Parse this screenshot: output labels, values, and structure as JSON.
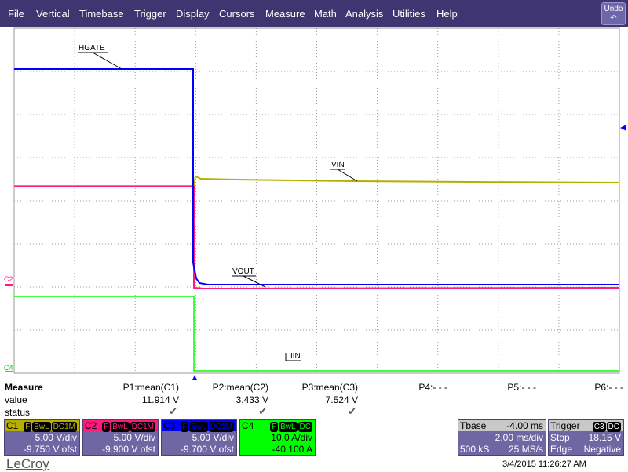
{
  "menu": [
    "File",
    "Vertical",
    "Timebase",
    "Trigger",
    "Display",
    "Cursors",
    "Measure",
    "Math",
    "Analysis",
    "Utilities",
    "Help"
  ],
  "undo_label": "Undo",
  "trace_labels": {
    "hgate": "HGATE",
    "vin": "VIN",
    "vout": "VOUT",
    "iin": "IIN"
  },
  "channel_markers": {
    "c2": "C2",
    "c4": "C4"
  },
  "colors": {
    "c1": "#b5b000",
    "c2": "#ff1b7e",
    "c3": "#0000ff",
    "c4": "#00ff00",
    "menu": "#3f3570",
    "panel": "#6f67a3"
  },
  "measure": {
    "title": "Measure",
    "value_label": "value",
    "status_label": "status",
    "params": [
      {
        "name": "P1:mean(C1)",
        "value": "11.914 V",
        "status": "✔"
      },
      {
        "name": "P2:mean(C2)",
        "value": "3.433 V",
        "status": "✔"
      },
      {
        "name": "P3:mean(C3)",
        "value": "7.524 V",
        "status": "✔"
      },
      {
        "name": "P4:- - -",
        "value": "",
        "status": ""
      },
      {
        "name": "P5:- - -",
        "value": "",
        "status": ""
      },
      {
        "name": "P6:- - -",
        "value": "",
        "status": ""
      }
    ]
  },
  "channels": [
    {
      "name": "C1",
      "tags": [
        "F",
        "BwL",
        "DC1M"
      ],
      "scale": "5.00 V/div",
      "offset": "-9.750 V ofst"
    },
    {
      "name": "C2",
      "tags": [
        "F",
        "BwL",
        "DC1M"
      ],
      "scale": "5.00 V/div",
      "offset": "-9.900 V ofst"
    },
    {
      "name": "C3",
      "tags": [
        "F",
        "BwL",
        "DC1M"
      ],
      "scale": "5.00 V/div",
      "offset": "-9.700 V ofst"
    },
    {
      "name": "C4",
      "tags": [
        "F",
        "BwL",
        "DC"
      ],
      "scale": "10.0 A/div",
      "offset": "-40.100 A"
    }
  ],
  "timebase": {
    "label": "Tbase",
    "delay": "-4.00 ms",
    "scale": "2.00 ms/div",
    "samples": "500 kS",
    "rate": "25 MS/s"
  },
  "trigger": {
    "label": "Trigger",
    "tags": [
      "C3",
      "DC"
    ],
    "mode": "Stop",
    "level": "18.15 V",
    "type": "Edge",
    "slope": "Negative"
  },
  "brand": "LeCroy",
  "timestamp": "3/4/2015 11:26:27 AM"
}
